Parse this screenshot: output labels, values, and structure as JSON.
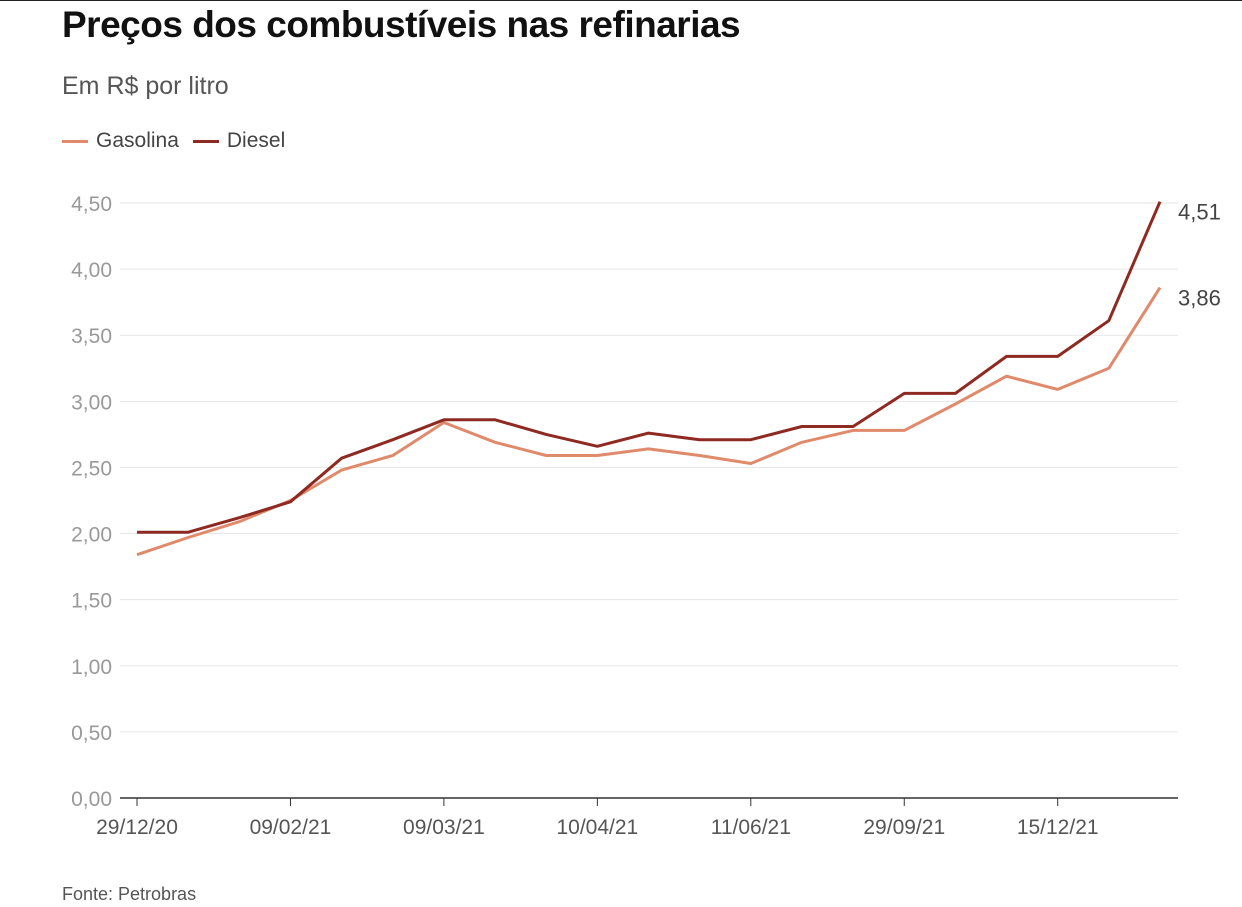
{
  "chart_data": {
    "type": "line",
    "title": "Preços dos combustíveis nas refinarias",
    "subtitle": "Em R$ por litro",
    "source": "Fonte: Petrobras",
    "xlabel": "",
    "ylabel": "",
    "ylim": [
      0,
      4.5
    ],
    "yticks": [
      "0,00",
      "0,50",
      "1,00",
      "1,50",
      "2,00",
      "2,50",
      "3,00",
      "3,50",
      "4,00",
      "4,50"
    ],
    "ytick_values": [
      0,
      0.5,
      1,
      1.5,
      2,
      2.5,
      3,
      3.5,
      4,
      4.5
    ],
    "xtick_labels": [
      "29/12/20",
      "09/02/21",
      "09/03/21",
      "10/04/21",
      "11/06/21",
      "29/09/21",
      "15/12/21"
    ],
    "xtick_indices": [
      0,
      3,
      6,
      9,
      12,
      15,
      18
    ],
    "grid": true,
    "legend_position": "top-left",
    "series": [
      {
        "name": "Gasolina",
        "color": "#e08a6c",
        "end_label": "3,86",
        "values": [
          1.84,
          1.97,
          2.09,
          2.25,
          2.48,
          2.59,
          2.84,
          2.69,
          2.59,
          2.59,
          2.64,
          2.59,
          2.53,
          2.69,
          2.78,
          2.78,
          2.98,
          3.19,
          3.09,
          3.25,
          3.86
        ]
      },
      {
        "name": "Diesel",
        "color": "#8e2a22",
        "end_label": "4,51",
        "values": [
          2.01,
          2.01,
          2.12,
          2.24,
          2.57,
          2.71,
          2.86,
          2.86,
          2.75,
          2.66,
          2.76,
          2.71,
          2.71,
          2.81,
          2.81,
          3.06,
          3.06,
          3.34,
          3.34,
          3.61,
          4.51
        ]
      }
    ]
  }
}
